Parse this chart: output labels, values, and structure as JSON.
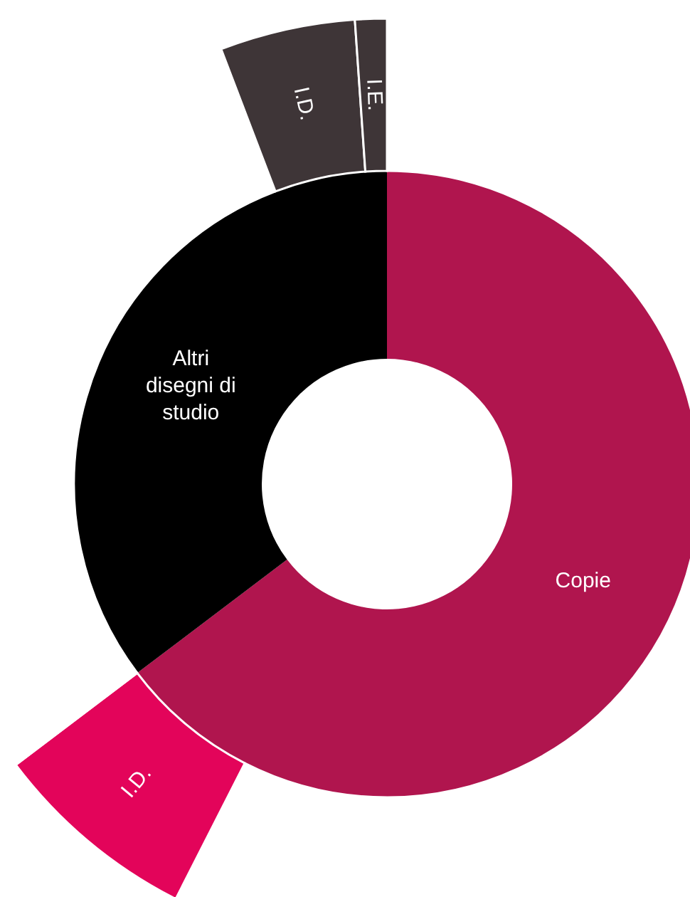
{
  "chart_data": [
    {
      "type": "donut",
      "categories": [
        "Copie",
        "Altri disegni di studio"
      ],
      "values": [
        64.7,
        35.3
      ],
      "colors": [
        "#b0154e",
        "#000000"
      ]
    },
    {
      "type": "donut",
      "categories": [
        null,
        "I.D.",
        null,
        "I.D.",
        "I.E."
      ],
      "values": [
        57.5,
        7.2,
        29.5,
        4.7,
        1.1
      ],
      "colors": [
        "#ffffff",
        "#e3045a",
        "#ffffff",
        "#3e3537",
        "#3e3537"
      ]
    }
  ]
}
